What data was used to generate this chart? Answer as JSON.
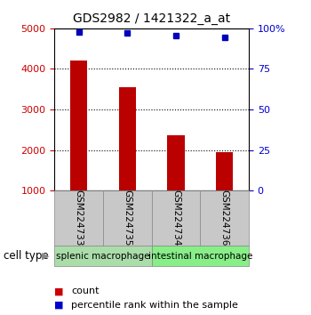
{
  "title": "GDS2982 / 1421322_a_at",
  "samples": [
    "GSM224733",
    "GSM224735",
    "GSM224734",
    "GSM224736"
  ],
  "counts": [
    4200,
    3550,
    2370,
    1950
  ],
  "percentile_ranks": [
    97.5,
    97.0,
    95.5,
    94.5
  ],
  "ylim_left": [
    1000,
    5000
  ],
  "ylim_right": [
    0,
    100
  ],
  "yticks_left": [
    1000,
    2000,
    3000,
    4000,
    5000
  ],
  "yticks_right": [
    0,
    25,
    50,
    75,
    100
  ],
  "bar_color": "#bb0000",
  "dot_color": "#0000bb",
  "left_tick_color": "#cc0000",
  "right_tick_color": "#0000cc",
  "sample_bg_color": "#c8c8c8",
  "group1_color": "#aaddaa",
  "group2_color": "#88ee88",
  "legend_count_color": "#cc0000",
  "legend_pct_color": "#0000cc",
  "gridline_ticks": [
    2000,
    3000,
    4000
  ]
}
